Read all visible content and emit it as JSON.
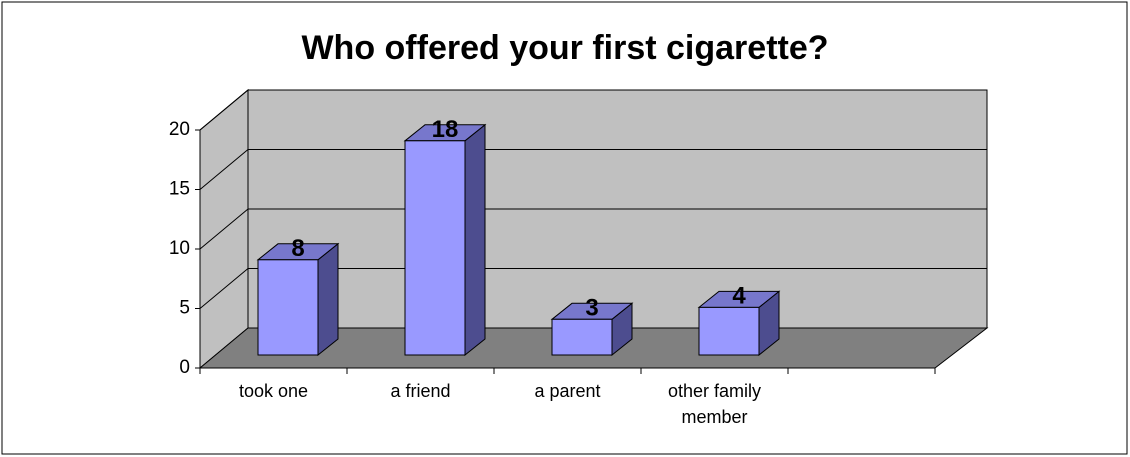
{
  "chart_data": {
    "type": "bar3d",
    "title": "Who offered your first cigarette?",
    "categories": [
      "took one",
      "a friend",
      "a parent",
      "other family member",
      null
    ],
    "values": [
      8,
      18,
      3,
      4,
      null
    ],
    "color": "#9999ff",
    "ylim": [
      0,
      20
    ],
    "yticks": [
      0,
      5,
      10,
      15,
      20
    ],
    "grid": true
  }
}
